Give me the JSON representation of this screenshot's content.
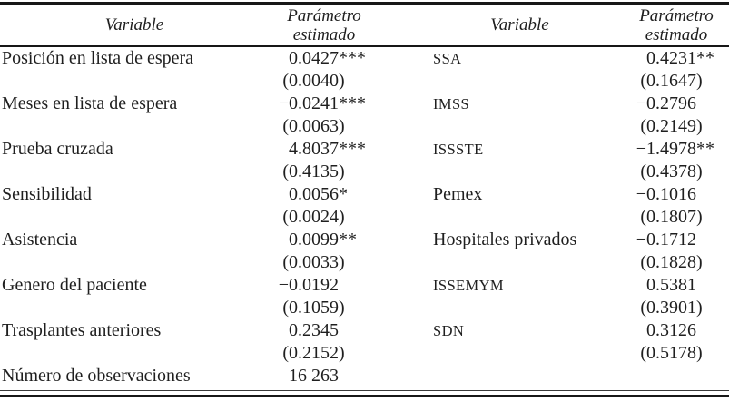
{
  "colors": {
    "ink": "#1f1f1f",
    "background": "#ffffff"
  },
  "table": {
    "headers": {
      "variable_left": "Variable",
      "estimate_left": "Parámetro estimado",
      "variable_right": "Variable",
      "estimate_right": "Parámetro estimado"
    },
    "rows": [
      {
        "left_label": "Posición en lista de espera",
        "left_est": "0.0427***",
        "left_se": "(0.0040)",
        "right_label": "SSA",
        "right_est": "0.4231**",
        "right_se": "(0.1647)"
      },
      {
        "left_label": "Meses en lista de espera",
        "left_est": "−0.0241***",
        "left_se": "(0.0063)",
        "right_label": "IMSS",
        "right_est": "−0.2796",
        "right_se": "(0.2149)"
      },
      {
        "left_label": "Prueba cruzada",
        "left_est": "4.8037***",
        "left_se": "(0.4135)",
        "right_label": "ISSSTE",
        "right_est": "−1.4978**",
        "right_se": "(0.4378)"
      },
      {
        "left_label": "Sensibilidad",
        "left_est": "0.0056*",
        "left_se": "(0.0024)",
        "right_label": "Pemex",
        "right_est": "−0.1016",
        "right_se": "(0.1807)"
      },
      {
        "left_label": "Asistencia",
        "left_est": "0.0099**",
        "left_se": "(0.0033)",
        "right_label": "Hospitales privados",
        "right_est": "−0.1712",
        "right_se": "(0.1828)"
      },
      {
        "left_label": "Genero del paciente",
        "left_est": "−0.0192",
        "left_se": "(0.1059)",
        "right_label": "ISSEMYM",
        "right_est": "0.5381",
        "right_se": "(0.3901)"
      },
      {
        "left_label": "Trasplantes anteriores",
        "left_est": "0.2345",
        "left_se": "(0.2152)",
        "right_label": "SDN",
        "right_est": "0.3126",
        "right_se": "(0.5178)"
      }
    ],
    "footer": {
      "label": "Número de observaciones",
      "value": "16 263"
    }
  }
}
